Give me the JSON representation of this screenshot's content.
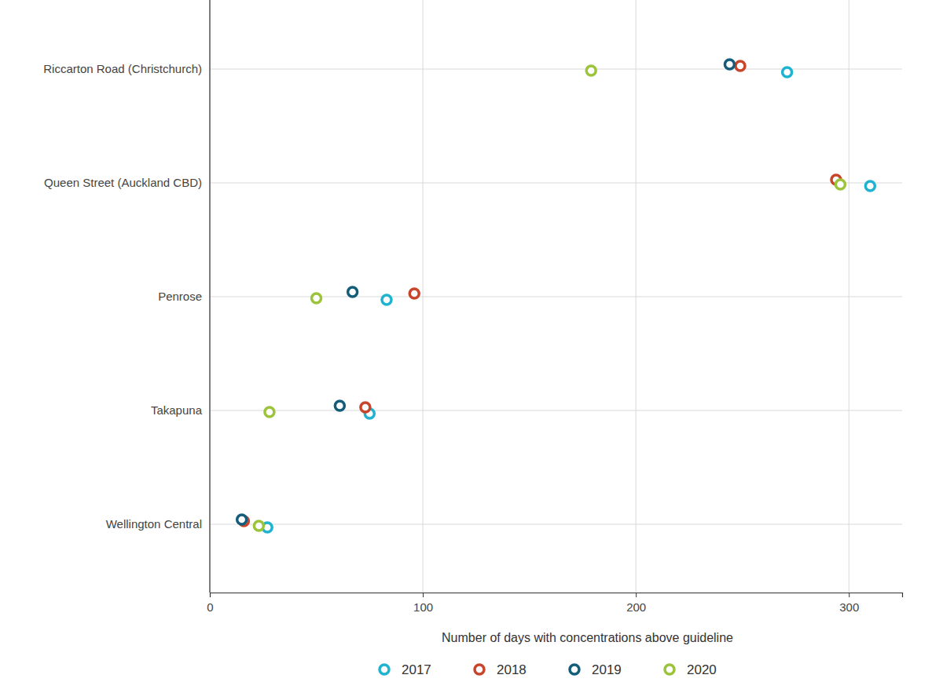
{
  "chart_data": {
    "type": "scatter",
    "orientation": "horizontal",
    "x_label": "Number of days with concentrations above guideline",
    "categories": [
      "Riccarton Road (Christchurch)",
      "Queen Street (Auckland CBD)",
      "Penrose",
      "Takapuna",
      "Wellington Central"
    ],
    "series": [
      {
        "name": "2017",
        "color": "#1fb3cf",
        "values": [
          271,
          310,
          83,
          75,
          27
        ]
      },
      {
        "name": "2018",
        "color": "#c8442a",
        "values": [
          249,
          294,
          96,
          73,
          16
        ]
      },
      {
        "name": "2019",
        "color": "#135d7a",
        "values": [
          244,
          null,
          67,
          61,
          15
        ]
      },
      {
        "name": "2020",
        "color": "#9cc43a",
        "values": [
          179,
          296,
          50,
          28,
          23
        ]
      }
    ],
    "xlim": [
      0,
      325
    ],
    "xticks": [
      0,
      100,
      200,
      300
    ],
    "grid": true,
    "legend": "bottom",
    "marker": "ring"
  }
}
